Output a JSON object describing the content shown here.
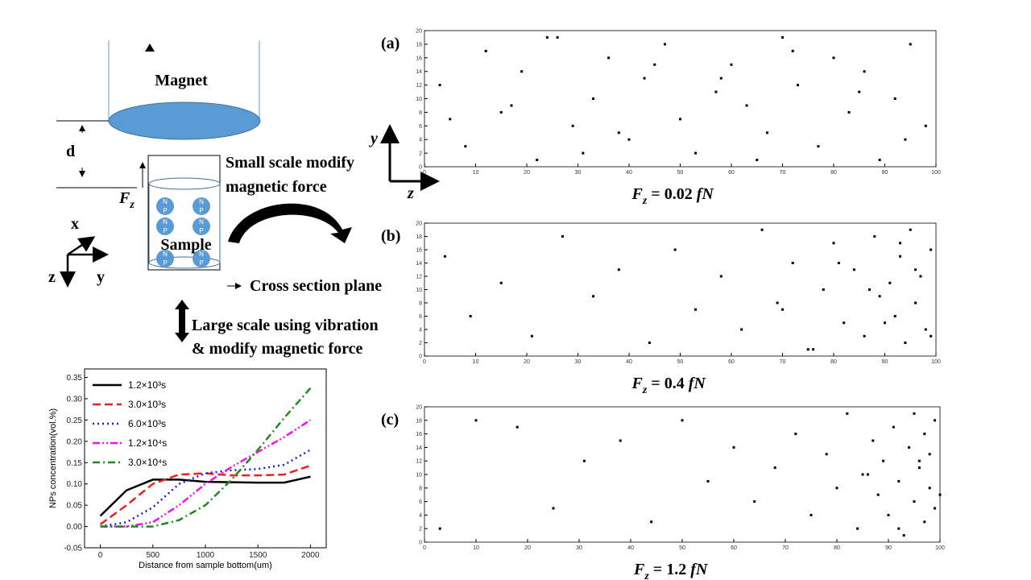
{
  "diagram": {
    "magnet": "Magnet",
    "gap": "d",
    "force": {
      "symbol": "F",
      "subscript": "z"
    },
    "small_scale": [
      "Small  scale modify",
      "magnetic force"
    ],
    "sample": "Sample",
    "particle": [
      "N",
      "P"
    ],
    "axes": [
      "x",
      "y",
      "z"
    ],
    "cross_section": "Cross section plane",
    "large_scale": [
      "Large scale using vibration",
      "& modify magnetic force"
    ],
    "panel_axes": [
      "y",
      "z"
    ]
  },
  "chart_data": [
    {
      "type": "line",
      "xlabel": "Distance from sample bottom(um)",
      "ylabel": "NPs concentration(vol.%)",
      "x": [
        0,
        250,
        500,
        750,
        1000,
        1250,
        1500,
        1750,
        2000
      ],
      "xlim": [
        -150,
        2150
      ],
      "ylim": [
        -0.05,
        0.37
      ],
      "xticks": [
        0,
        500,
        1000,
        1500,
        2000
      ],
      "yticks": [
        -0.05,
        {
          "value": 0,
          "label": "0.00"
        },
        0.05,
        {
          "value": 0.1,
          "label": "0.10"
        },
        0.15,
        {
          "value": 0.2,
          "label": "0.20"
        },
        0.25,
        {
          "value": 0.3,
          "label": "0.30"
        },
        0.35
      ],
      "legend": "upper left",
      "series": [
        {
          "name": "1.2×10³s",
          "color": "#000000",
          "line_style": "solid",
          "values": [
            0.025,
            0.085,
            0.11,
            0.11,
            0.105,
            0.104,
            0.103,
            0.103,
            0.117
          ]
        },
        {
          "name": "3.0×10³s",
          "color": "#e8231f",
          "line_style": "dashed",
          "values": [
            0.005,
            0.05,
            0.1,
            0.122,
            0.125,
            0.12,
            0.12,
            0.122,
            0.143
          ]
        },
        {
          "name": "6.0×10³s",
          "color": "#1c1ccf",
          "line_style": "dotted",
          "values": [
            0,
            0.01,
            0.045,
            0.1,
            0.125,
            0.132,
            0.135,
            0.145,
            0.18
          ]
        },
        {
          "name": "1.2×10⁴s",
          "color": "#ee12ee",
          "line_style": "dashdotdot",
          "values": [
            0,
            0,
            0.01,
            0.05,
            0.1,
            0.14,
            0.175,
            0.21,
            0.25
          ]
        },
        {
          "name": "3.0×10⁴s",
          "color": "#1f8a1f",
          "line_style": "dashdot",
          "values": [
            0,
            0,
            0,
            0.015,
            0.05,
            0.11,
            0.18,
            0.255,
            0.325
          ]
        }
      ]
    },
    {
      "type": "scatter",
      "label": "(a)",
      "caption": {
        "symbol": "F",
        "subscript": "z",
        "value": "= 0.02",
        "unit": "fN"
      },
      "color": "#000000",
      "xlim": [
        0,
        100
      ],
      "ylim": [
        0,
        20
      ],
      "xticks": [
        0,
        10,
        20,
        30,
        40,
        50,
        60,
        70,
        80,
        90,
        100
      ],
      "yticks": [
        0,
        2,
        4,
        6,
        8,
        10,
        12,
        14,
        16,
        18,
        20
      ],
      "x": [
        3,
        8,
        12,
        15,
        19,
        22,
        26,
        29,
        33,
        36,
        40,
        43,
        47,
        50,
        53,
        57,
        60,
        63,
        67,
        70,
        73,
        77,
        80,
        83,
        86,
        89,
        92,
        95,
        98,
        5,
        17,
        31,
        45,
        58,
        72,
        85,
        94,
        24,
        38,
        65
      ],
      "values": [
        12,
        3,
        17,
        8,
        14,
        1,
        19,
        6,
        10,
        16,
        4,
        13,
        18,
        7,
        2,
        11,
        15,
        9,
        5,
        19,
        12,
        3,
        16,
        8,
        14,
        1,
        10,
        18,
        6,
        7,
        9,
        2,
        15,
        13,
        17,
        11,
        4,
        19,
        5,
        1
      ]
    },
    {
      "type": "scatter",
      "label": "(b)",
      "caption": {
        "symbol": "F",
        "subscript": "z",
        "value": "= 0.4",
        "unit": "fN"
      },
      "color": "#000000",
      "xlim": [
        0,
        100
      ],
      "ylim": [
        0,
        20
      ],
      "xticks": [
        0,
        10,
        20,
        30,
        40,
        50,
        60,
        70,
        80,
        90,
        100
      ],
      "yticks": [
        0,
        2,
        4,
        6,
        8,
        10,
        12,
        14,
        16,
        18,
        20
      ],
      "x": [
        4,
        9,
        15,
        21,
        27,
        33,
        38,
        44,
        49,
        53,
        58,
        62,
        66,
        69,
        72,
        75,
        78,
        80,
        82,
        84,
        86,
        88,
        89,
        91,
        92,
        93,
        94,
        95,
        96,
        97,
        98,
        99,
        70,
        76,
        81,
        87,
        90,
        93,
        96,
        99
      ],
      "values": [
        15,
        6,
        11,
        3,
        18,
        9,
        13,
        2,
        16,
        7,
        12,
        4,
        19,
        8,
        14,
        1,
        10,
        17,
        5,
        13,
        3,
        18,
        9,
        11,
        6,
        15,
        2,
        19,
        8,
        12,
        4,
        16,
        7,
        1,
        14,
        10,
        5,
        17,
        13,
        3
      ]
    },
    {
      "type": "scatter",
      "label": "(c)",
      "caption": {
        "symbol": "F",
        "subscript": "z",
        "value": "= 1.2",
        "unit": "fN"
      },
      "color": "#000000",
      "xlim": [
        0,
        100
      ],
      "ylim": [
        0,
        20
      ],
      "xticks": [
        0,
        10,
        20,
        30,
        40,
        50,
        60,
        70,
        80,
        90,
        100
      ],
      "yticks": [
        0,
        2,
        4,
        6,
        8,
        10,
        12,
        14,
        16,
        18,
        20
      ],
      "x": [
        3,
        10,
        18,
        25,
        31,
        38,
        44,
        50,
        55,
        60,
        64,
        68,
        72,
        75,
        78,
        80,
        82,
        84,
        86,
        87,
        88,
        89,
        90,
        91,
        92,
        93,
        94,
        95,
        95,
        96,
        97,
        97,
        98,
        98,
        99,
        99,
        85,
        92,
        96,
        100
      ],
      "values": [
        2,
        18,
        17,
        5,
        12,
        15,
        3,
        18,
        9,
        14,
        6,
        11,
        16,
        4,
        13,
        8,
        19,
        2,
        10,
        15,
        7,
        12,
        4,
        17,
        9,
        1,
        14,
        6,
        19,
        11,
        3,
        16,
        8,
        13,
        5,
        18,
        10,
        2,
        12,
        7
      ]
    }
  ]
}
